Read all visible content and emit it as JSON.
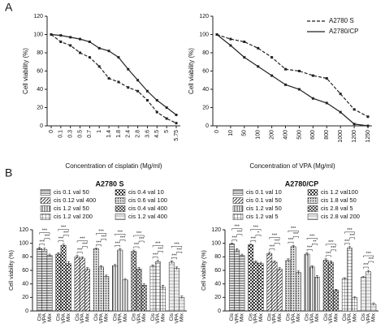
{
  "panels": [
    "A",
    "B"
  ],
  "chart_data": [
    {
      "type": "line",
      "y_label": "Cell viability (%)",
      "x_label": "Concentration of cisplatin (Mg/ml)",
      "categories": [
        "0",
        "0.1",
        "0.3",
        "0.5",
        "0.7",
        "1",
        "1.4",
        "1.8",
        "2.4",
        "2.8",
        "3.6",
        "4.5",
        "5",
        "5.75"
      ],
      "series": [
        {
          "name": "A2780 S",
          "color": "#222222",
          "dash": true,
          "values": [
            100,
            92,
            88,
            80,
            75,
            65,
            52,
            48,
            42,
            38,
            28,
            15,
            8,
            3
          ]
        },
        {
          "name": "A2780/CP",
          "color": "#222222",
          "dash": false,
          "values": [
            100,
            99,
            97,
            95,
            92,
            85,
            82,
            75,
            62,
            50,
            38,
            28,
            20,
            12
          ]
        }
      ],
      "ylim": [
        0,
        120
      ],
      "yticks": [
        0,
        20,
        40,
        60,
        80,
        100,
        120
      ],
      "legend": false
    },
    {
      "type": "line",
      "y_label": "Cell viability (%)",
      "x_label": "Concentration of VPA (Mg/ml)",
      "categories": [
        "0",
        "10",
        "50",
        "100",
        "200",
        "400",
        "500",
        "600",
        "800",
        "1000",
        "1200",
        "1250"
      ],
      "series": [
        {
          "name": "A2780 S",
          "color": "#222222",
          "dash": true,
          "values": [
            100,
            95,
            92,
            85,
            75,
            62,
            60,
            55,
            52,
            35,
            18,
            10
          ]
        },
        {
          "name": "A2780/CP",
          "color": "#222222",
          "dash": false,
          "values": [
            100,
            88,
            75,
            65,
            55,
            45,
            40,
            30,
            25,
            15,
            2,
            0
          ]
        }
      ],
      "ylim": [
        0,
        120
      ],
      "yticks": [
        0,
        20,
        40,
        60,
        80,
        100,
        120
      ],
      "legend": true
    },
    {
      "type": "groupbar",
      "title": "A2780 S",
      "y_label": "Cell viability (%)",
      "ylim": [
        0,
        120
      ],
      "yticks": [
        0,
        20,
        40,
        60,
        80,
        100,
        120
      ],
      "groups": [
        {
          "name": "cis 0.1 val 50",
          "pattern": "hlines",
          "labels": [
            "Cis",
            "VPA",
            "Mix"
          ],
          "values": [
            92,
            91,
            82
          ],
          "errors": [
            2,
            2,
            2
          ],
          "sig": [
            "***",
            "***",
            "***"
          ]
        },
        {
          "name": "cis 0.4 val 10",
          "pattern": "check",
          "labels": [
            "Cis",
            "VPA",
            "Mix"
          ],
          "values": [
            84,
            97,
            70
          ],
          "errors": [
            2,
            2,
            3
          ],
          "sig": [
            "***",
            "***",
            "***"
          ]
        },
        {
          "name": "cis 0.12 val 400",
          "pattern": "diag",
          "labels": [
            "Cis",
            "VPA",
            "Mix"
          ],
          "values": [
            80,
            78,
            62
          ],
          "errors": [
            2,
            2,
            2
          ],
          "sig": [
            "***",
            "***",
            "***"
          ]
        },
        {
          "name": "cis 0.6 val 100",
          "pattern": "dots",
          "labels": [
            "Cis",
            "VPA",
            "Mix"
          ],
          "values": [
            92,
            65,
            51
          ],
          "errors": [
            1,
            2,
            2
          ],
          "sig": [
            "***",
            "***",
            "***"
          ]
        },
        {
          "name": "cis 1.2 val 50",
          "pattern": "vlines",
          "labels": [
            "Cis",
            "VPA",
            "Mix"
          ],
          "values": [
            67,
            90,
            46
          ],
          "errors": [
            2,
            2,
            2
          ],
          "sig": [
            "***",
            "***",
            "***"
          ]
        },
        {
          "name": "cis 0.4 val 400",
          "pattern": "cross",
          "labels": [
            "Cis",
            "VPA",
            "Mix"
          ],
          "values": [
            88,
            62,
            38
          ],
          "errors": [
            2,
            2,
            2
          ],
          "sig": [
            "***",
            "***",
            "***"
          ]
        },
        {
          "name": "cis 1.2 val 200",
          "pattern": "grid",
          "labels": [
            "Cis",
            "VPA",
            "Mix"
          ],
          "values": [
            66,
            73,
            35
          ],
          "errors": [
            2,
            2,
            3
          ],
          "sig": [
            "***",
            "***",
            "***"
          ]
        },
        {
          "name": "cis 1.2 val 400",
          "pattern": "solidlight",
          "labels": [
            "Cis",
            "VPA",
            "Mix"
          ],
          "values": [
            72,
            63,
            20
          ],
          "errors": [
            2,
            2,
            2
          ],
          "sig": [
            "***",
            "***",
            "***"
          ]
        }
      ]
    },
    {
      "type": "groupbar",
      "title": "A2780/CP",
      "y_label": "Cell viability (%)",
      "ylim": [
        0,
        120
      ],
      "yticks": [
        0,
        20,
        40,
        60,
        80,
        100,
        120
      ],
      "groups": [
        {
          "name": "cis 0.1 val 10",
          "pattern": "hlines",
          "labels": [
            "Cis",
            "VPA",
            "Mix"
          ],
          "values": [
            99,
            90,
            82
          ],
          "errors": [
            1,
            2,
            2
          ],
          "sig": [
            "***",
            "***",
            "***"
          ]
        },
        {
          "name": "cis 1.2 val100",
          "pattern": "check",
          "labels": [
            "Cis",
            "VPA",
            "Mix"
          ],
          "values": [
            98,
            72,
            70
          ],
          "errors": [
            1,
            2,
            2
          ],
          "sig": [
            "***",
            "*",
            "***"
          ]
        },
        {
          "name": "cis 0.1 val 50",
          "pattern": "diag",
          "labels": [
            "Cis",
            "VPA",
            "Mix"
          ],
          "values": [
            85,
            72,
            62
          ],
          "errors": [
            2,
            2,
            2
          ],
          "sig": [
            "***",
            "***",
            "***"
          ]
        },
        {
          "name": "cis 1.8 val 50",
          "pattern": "dots",
          "labels": [
            "Cis",
            "VPA",
            "Mix"
          ],
          "values": [
            75,
            95,
            57
          ],
          "errors": [
            2,
            2,
            2
          ],
          "sig": [
            "***",
            "***",
            "***"
          ]
        },
        {
          "name": "cis 1.2 val 50",
          "pattern": "vlines",
          "labels": [
            "Cis",
            "VPA",
            "Mix"
          ],
          "values": [
            84,
            65,
            50
          ],
          "errors": [
            2,
            2,
            2
          ],
          "sig": [
            "***",
            "**",
            "***"
          ]
        },
        {
          "name": "cis 2.8 val 5",
          "pattern": "cross",
          "labels": [
            "Cis",
            "VPA",
            "Mix"
          ],
          "values": [
            75,
            72,
            31
          ],
          "errors": [
            2,
            2,
            1
          ],
          "sig": [
            "***",
            "***",
            "***"
          ]
        },
        {
          "name": "cis 1.2 val 5",
          "pattern": "grid",
          "labels": [
            "Cis",
            "VPA",
            "Mix"
          ],
          "values": [
            48,
            93,
            20
          ],
          "errors": [
            1,
            2,
            1
          ],
          "sig": [
            "***",
            "***",
            "***"
          ]
        },
        {
          "name": "cis 2.8 val 200",
          "pattern": "solidlight",
          "labels": [
            "Cis",
            "VPA",
            "Mix"
          ],
          "values": [
            50,
            58,
            10
          ],
          "errors": [
            1,
            2,
            2
          ],
          "sig": [
            "***",
            "***",
            "***"
          ]
        }
      ]
    }
  ]
}
